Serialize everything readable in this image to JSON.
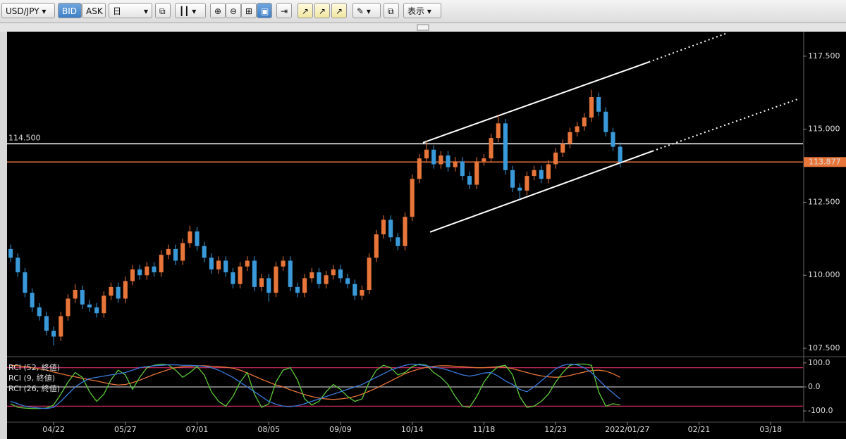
{
  "toolbar": {
    "symbol": "USD/JPY",
    "bid": "BID",
    "ask": "ASK",
    "period": "日",
    "view": "表示"
  },
  "chart_data": [
    {
      "type": "candlestick",
      "up_color": "#e8763a",
      "down_color": "#3a9ad9",
      "xlim": [
        -0.5,
        110.5
      ],
      "ylim": [
        107.26,
        118.34
      ],
      "yticks": [
        {
          "value": 107.5,
          "label": "107.500"
        },
        {
          "value": 110,
          "label": "110.000"
        },
        {
          "value": 112.5,
          "label": "112.500"
        },
        {
          "value": 115,
          "label": "115.000"
        },
        {
          "value": 117.5,
          "label": "117.500"
        }
      ],
      "grid": false,
      "open": [
        110.9,
        110.6,
        110.1,
        109.4,
        108.9,
        108.6,
        108.1,
        107.9,
        108.6,
        109.2,
        109.5,
        109.0,
        108.9,
        108.7,
        109.3,
        109.6,
        109.2,
        109.8,
        110.2,
        110.0,
        110.3,
        110.1,
        110.7,
        110.9,
        110.5,
        111.1,
        111.5,
        111.0,
        110.6,
        110.2,
        110.5,
        110.1,
        109.7,
        110.3,
        110.5,
        109.6,
        109.9,
        109.4,
        110.3,
        110.5,
        109.6,
        109.4,
        109.9,
        110.1,
        109.7,
        110.0,
        110.2,
        109.9,
        109.7,
        109.3,
        109.5,
        110.6,
        111.4,
        111.9,
        111.3,
        111.0,
        112.0,
        113.3,
        114.0,
        114.3,
        113.8,
        114.1,
        113.7,
        113.9,
        113.4,
        113.1,
        113.9,
        114.0,
        114.7,
        115.2,
        113.6,
        113.0,
        112.9,
        113.4,
        113.6,
        113.3,
        113.8,
        114.2,
        114.5,
        114.9,
        115.1,
        115.4,
        116.1,
        115.6,
        114.9,
        114.4
      ],
      "high": [
        111.05,
        110.75,
        110.25,
        109.55,
        109.05,
        108.75,
        108.25,
        108.75,
        109.35,
        109.7,
        109.65,
        109.15,
        109.05,
        109.45,
        109.75,
        109.75,
        109.95,
        110.35,
        110.35,
        110.45,
        110.45,
        110.85,
        111.05,
        111.05,
        111.25,
        111.7,
        111.65,
        111.15,
        110.75,
        110.65,
        110.65,
        110.25,
        110.45,
        110.65,
        110.65,
        110.05,
        110.05,
        110.45,
        110.65,
        110.65,
        109.75,
        110.05,
        110.25,
        110.25,
        110.15,
        110.35,
        110.35,
        110.05,
        109.85,
        109.65,
        110.75,
        111.55,
        112.05,
        112.05,
        111.45,
        112.15,
        113.45,
        114.15,
        114.6,
        114.45,
        114.25,
        114.25,
        114.05,
        114.05,
        113.55,
        114.05,
        114.15,
        114.85,
        115.5,
        115.35,
        113.75,
        113.15,
        113.55,
        113.75,
        113.75,
        113.95,
        114.35,
        114.65,
        115.05,
        115.25,
        115.55,
        116.35,
        116.25,
        115.75,
        115.05,
        114.55
      ],
      "low": [
        110.45,
        109.95,
        109.25,
        108.75,
        108.45,
        107.95,
        107.6,
        107.75,
        108.45,
        109.05,
        108.85,
        108.75,
        108.55,
        108.55,
        109.15,
        109.05,
        109.05,
        109.65,
        109.85,
        109.85,
        109.95,
        109.95,
        110.55,
        110.35,
        110.35,
        110.95,
        110.85,
        110.45,
        110.05,
        110.05,
        109.95,
        109.55,
        109.55,
        110.15,
        109.45,
        109.45,
        109.1,
        109.25,
        110.15,
        109.45,
        109.25,
        109.25,
        109.75,
        109.55,
        109.55,
        109.85,
        109.75,
        109.55,
        109.15,
        109.15,
        109.35,
        110.45,
        111.25,
        111.15,
        110.85,
        110.85,
        111.85,
        113.15,
        113.85,
        113.65,
        113.65,
        113.55,
        113.55,
        113.25,
        112.95,
        112.95,
        113.75,
        113.85,
        114.55,
        113.45,
        112.85,
        112.6,
        112.75,
        113.25,
        113.15,
        113.15,
        113.65,
        114.05,
        114.35,
        114.75,
        114.95,
        115.25,
        115.45,
        114.75,
        114.25,
        113.7
      ],
      "close": [
        110.6,
        110.1,
        109.4,
        108.9,
        108.6,
        108.1,
        107.9,
        108.6,
        109.2,
        109.5,
        109.0,
        108.9,
        108.7,
        109.3,
        109.6,
        109.2,
        109.8,
        110.2,
        110.0,
        110.3,
        110.1,
        110.7,
        110.9,
        110.5,
        111.1,
        111.5,
        111.0,
        110.6,
        110.2,
        110.5,
        110.1,
        109.7,
        110.3,
        110.5,
        109.6,
        109.9,
        109.4,
        110.3,
        110.5,
        109.6,
        109.4,
        109.9,
        110.1,
        109.7,
        110.0,
        110.2,
        109.9,
        109.7,
        109.3,
        109.5,
        110.6,
        111.4,
        111.9,
        111.3,
        111.0,
        112.0,
        113.3,
        114.0,
        114.3,
        113.8,
        114.1,
        113.7,
        113.9,
        113.4,
        113.1,
        113.9,
        114.0,
        114.7,
        115.2,
        113.6,
        113.0,
        112.9,
        113.4,
        113.6,
        113.3,
        113.8,
        114.2,
        114.5,
        114.9,
        115.1,
        115.4,
        116.1,
        115.6,
        114.9,
        114.4,
        113.88
      ],
      "hlines": [
        {
          "value": 114.5,
          "label": "114.500",
          "color": "#ffffff",
          "label_position": "left"
        },
        {
          "value": 113.877,
          "label": "113.877",
          "color": "#e8763a",
          "label_position": "right"
        }
      ],
      "trendlines": [
        {
          "x": [
            57.5,
            89
          ],
          "y": [
            114.54,
            117.3
          ],
          "style": "solid"
        },
        {
          "x": [
            89,
            100
          ],
          "y": [
            117.3,
            118.3
          ],
          "style": "dotted"
        },
        {
          "x": [
            58.5,
            89.5
          ],
          "y": [
            111.48,
            114.25
          ],
          "style": "solid"
        },
        {
          "x": [
            89.5,
            110
          ],
          "y": [
            114.25,
            116.05
          ],
          "style": "dotted"
        }
      ]
    },
    {
      "type": "line",
      "xlim": [
        -0.5,
        110.5
      ],
      "ylim": [
        -120,
        120
      ],
      "yticks": [
        {
          "value": 100,
          "label": "100.0"
        },
        {
          "value": 0,
          "label": "0.0"
        },
        {
          "value": -100,
          "label": "-100.0"
        }
      ],
      "levels": [
        {
          "value": 80,
          "color": "#e0306a"
        },
        {
          "value": 0,
          "color": "#bbbbbb"
        },
        {
          "value": -80,
          "color": "#e0306a"
        }
      ],
      "xticks": [
        {
          "value": 6,
          "label": "04/22"
        },
        {
          "value": 16,
          "label": "05/27"
        },
        {
          "value": 26,
          "label": "07/01"
        },
        {
          "value": 36,
          "label": "08/05"
        },
        {
          "value": 46,
          "label": "09/09"
        },
        {
          "value": 56,
          "label": "10/14"
        },
        {
          "value": 66,
          "label": "11/18"
        },
        {
          "value": 76,
          "label": "12/23"
        },
        {
          "value": 86,
          "label": "2022/01/27"
        },
        {
          "value": 96,
          "label": "02/21"
        },
        {
          "value": 106,
          "label": "03/18"
        }
      ],
      "series": [
        {
          "name": "RCI (52, 終値)",
          "color": "#e8763a",
          "values": [
            90,
            88,
            85,
            80,
            75,
            70,
            62,
            55,
            48,
            42,
            36,
            30,
            25,
            18,
            12,
            8,
            10,
            18,
            28,
            40,
            52,
            62,
            72,
            80,
            84,
            86,
            88,
            88,
            86,
            84,
            82,
            78,
            70,
            58,
            45,
            32,
            20,
            8,
            0,
            -12,
            -22,
            -32,
            -40,
            -46,
            -50,
            -52,
            -50,
            -46,
            -40,
            -30,
            -18,
            -5,
            10,
            25,
            40,
            55,
            66,
            75,
            82,
            86,
            88,
            88,
            86,
            84,
            82,
            80,
            80,
            82,
            84,
            82,
            76,
            68,
            60,
            52,
            46,
            42,
            40,
            42,
            48,
            55,
            62,
            68,
            70,
            66,
            55,
            40
          ]
        },
        {
          "name": "RCI (9, 終値)",
          "color": "#5cc83a",
          "values": [
            -70,
            -85,
            -88,
            -90,
            -90,
            -88,
            -75,
            -30,
            20,
            60,
            40,
            -20,
            -60,
            -30,
            30,
            70,
            50,
            -10,
            40,
            80,
            90,
            95,
            92,
            70,
            40,
            60,
            85,
            50,
            -20,
            -60,
            -80,
            -40,
            20,
            60,
            -30,
            -85,
            -70,
            20,
            70,
            80,
            30,
            -50,
            -75,
            -60,
            -20,
            10,
            -10,
            -40,
            -60,
            -50,
            20,
            70,
            90,
            80,
            50,
            60,
            85,
            95,
            90,
            60,
            40,
            10,
            -40,
            -80,
            -85,
            -40,
            20,
            60,
            85,
            90,
            50,
            -40,
            -85,
            -80,
            -60,
            -30,
            20,
            60,
            90,
            95,
            95,
            90,
            -20,
            -80,
            -70,
            -75
          ]
        },
        {
          "name": "RCI (26, 終値)",
          "color": "#3a7ad9",
          "values": [
            -60,
            -70,
            -80,
            -85,
            -88,
            -90,
            -85,
            -60,
            -30,
            0,
            20,
            35,
            40,
            45,
            50,
            55,
            60,
            70,
            80,
            85,
            88,
            90,
            92,
            92,
            90,
            90,
            88,
            86,
            80,
            70,
            55,
            40,
            20,
            0,
            -20,
            -40,
            -60,
            -72,
            -80,
            -82,
            -78,
            -70,
            -60,
            -50,
            -40,
            -30,
            -20,
            -10,
            0,
            10,
            25,
            40,
            55,
            70,
            80,
            90,
            95,
            92,
            88,
            82,
            78,
            70,
            60,
            50,
            45,
            50,
            58,
            60,
            45,
            25,
            10,
            -10,
            -20,
            0,
            25,
            50,
            75,
            90,
            95,
            92,
            80,
            60,
            30,
            0,
            -25,
            -50
          ]
        }
      ]
    }
  ]
}
